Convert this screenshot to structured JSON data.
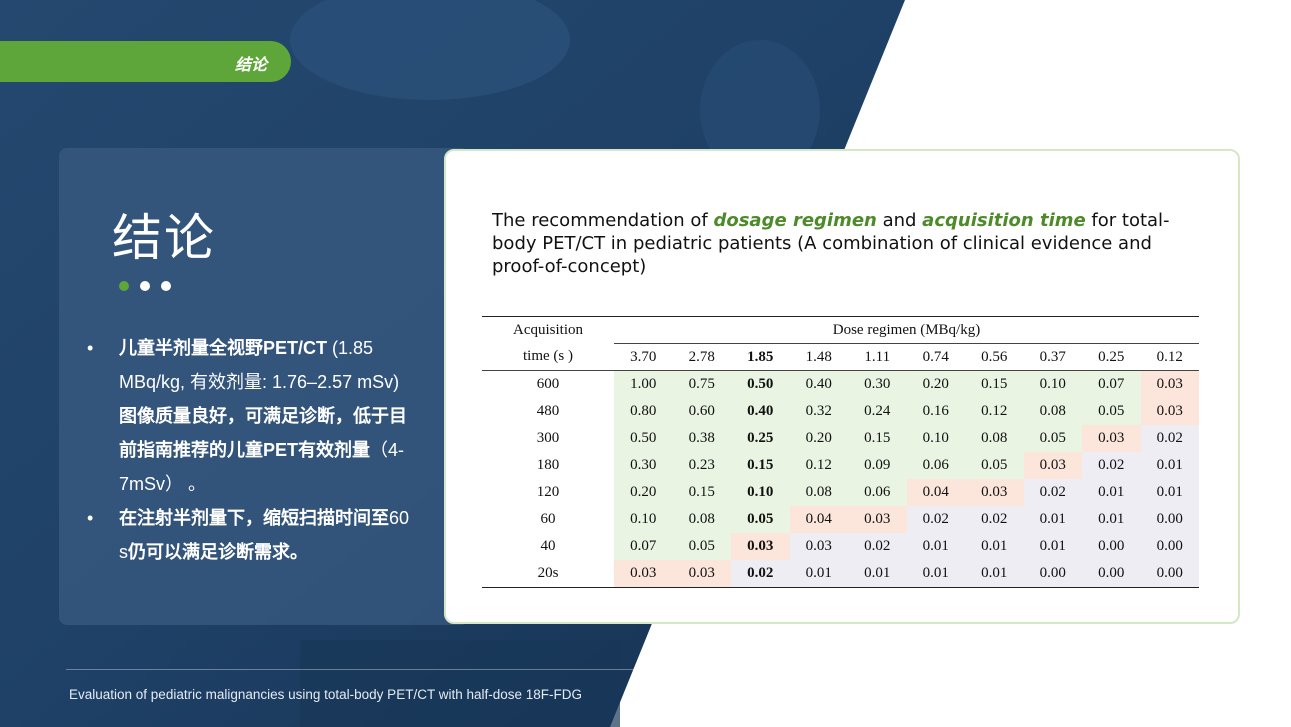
{
  "header_tab": "结论",
  "panel": {
    "title": "结论",
    "dot_colors": [
      "#5fa63a",
      "#ffffff",
      "#ffffff"
    ],
    "bullets": [
      {
        "segments": [
          {
            "text": "儿童半剂量全视野PET/CT",
            "bold": true
          },
          {
            "text": " (1.85 MBq/kg, 有效剂量: 1.76–2.57 mSv)",
            "bold": false
          },
          {
            "text": "图像质量良好，可满足诊断，低于目前指南推荐的儿童PET有效剂量",
            "bold": true
          },
          {
            "text": "（4-7mSv）  。",
            "bold": false
          }
        ]
      },
      {
        "segments": [
          {
            "text": "在注射半剂量下，缩短扫描时间至",
            "bold": true
          },
          {
            "text": "60 s",
            "bold": false
          },
          {
            "text": "仍可以满足诊断需求。",
            "bold": true
          }
        ]
      }
    ]
  },
  "card": {
    "title_parts": [
      {
        "text": "The recommendation of ",
        "hl": false
      },
      {
        "text": "dosage regimen",
        "hl": true
      },
      {
        "text": " and ",
        "hl": false
      },
      {
        "text": "acquisition time",
        "hl": true
      },
      {
        "text": " for total-body PET/CT in pediatric patients (A combination of clinical evidence and proof-of-concept)",
        "hl": false
      }
    ],
    "table": {
      "row_header_line1": "Acquisition",
      "row_header_line2": "time (s )",
      "group_header": "Dose regimen (MBq/kg)",
      "doses": [
        "3.70",
        "2.78",
        "1.85",
        "1.48",
        "1.11",
        "0.74",
        "0.56",
        "0.37",
        "0.25",
        "0.12"
      ],
      "bold_column": 2,
      "rows": [
        {
          "time": "600",
          "values": [
            "1.00",
            "0.75",
            "0.50",
            "0.40",
            "0.30",
            "0.20",
            "0.15",
            "0.10",
            "0.07",
            "0.03"
          ],
          "shade": [
            "g",
            "g",
            "g",
            "g",
            "g",
            "g",
            "g",
            "g",
            "g",
            "o"
          ]
        },
        {
          "time": "480",
          "values": [
            "0.80",
            "0.60",
            "0.40",
            "0.32",
            "0.24",
            "0.16",
            "0.12",
            "0.08",
            "0.05",
            "0.03"
          ],
          "shade": [
            "g",
            "g",
            "g",
            "g",
            "g",
            "g",
            "g",
            "g",
            "g",
            "o"
          ]
        },
        {
          "time": "300",
          "values": [
            "0.50",
            "0.38",
            "0.25",
            "0.20",
            "0.15",
            "0.10",
            "0.08",
            "0.05",
            "0.03",
            "0.02"
          ],
          "shade": [
            "g",
            "g",
            "g",
            "g",
            "g",
            "g",
            "g",
            "g",
            "o",
            "p"
          ]
        },
        {
          "time": "180",
          "values": [
            "0.30",
            "0.23",
            "0.15",
            "0.12",
            "0.09",
            "0.06",
            "0.05",
            "0.03",
            "0.02",
            "0.01"
          ],
          "shade": [
            "g",
            "g",
            "g",
            "g",
            "g",
            "g",
            "g",
            "o",
            "p",
            "p"
          ]
        },
        {
          "time": "120",
          "values": [
            "0.20",
            "0.15",
            "0.10",
            "0.08",
            "0.06",
            "0.04",
            "0.03",
            "0.02",
            "0.01",
            "0.01"
          ],
          "shade": [
            "g",
            "g",
            "g",
            "g",
            "g",
            "o",
            "o",
            "p",
            "p",
            "p"
          ]
        },
        {
          "time": "60",
          "values": [
            "0.10",
            "0.08",
            "0.05",
            "0.04",
            "0.03",
            "0.02",
            "0.02",
            "0.01",
            "0.01",
            "0.00"
          ],
          "shade": [
            "g",
            "g",
            "g",
            "o",
            "o",
            "p",
            "p",
            "p",
            "p",
            "p"
          ]
        },
        {
          "time": "40",
          "values": [
            "0.07",
            "0.05",
            "0.03",
            "0.03",
            "0.02",
            "0.01",
            "0.01",
            "0.01",
            "0.00",
            "0.00"
          ],
          "shade": [
            "g",
            "g",
            "o",
            "p",
            "p",
            "p",
            "p",
            "p",
            "p",
            "p"
          ]
        },
        {
          "time": "20s",
          "values": [
            "0.03",
            "0.03",
            "0.02",
            "0.01",
            "0.01",
            "0.01",
            "0.01",
            "0.00",
            "0.00",
            "0.00"
          ],
          "shade": [
            "o",
            "o",
            "p",
            "p",
            "p",
            "p",
            "p",
            "p",
            "p",
            "p"
          ]
        }
      ]
    }
  },
  "footer": "Evaluation of pediatric malignancies using total-body PET/CT with half-dose 18F-FDG",
  "colors": {
    "brand_green": "#5fa63a",
    "navy": "#1e3f66",
    "highlight_text": "#4d8a2a"
  }
}
